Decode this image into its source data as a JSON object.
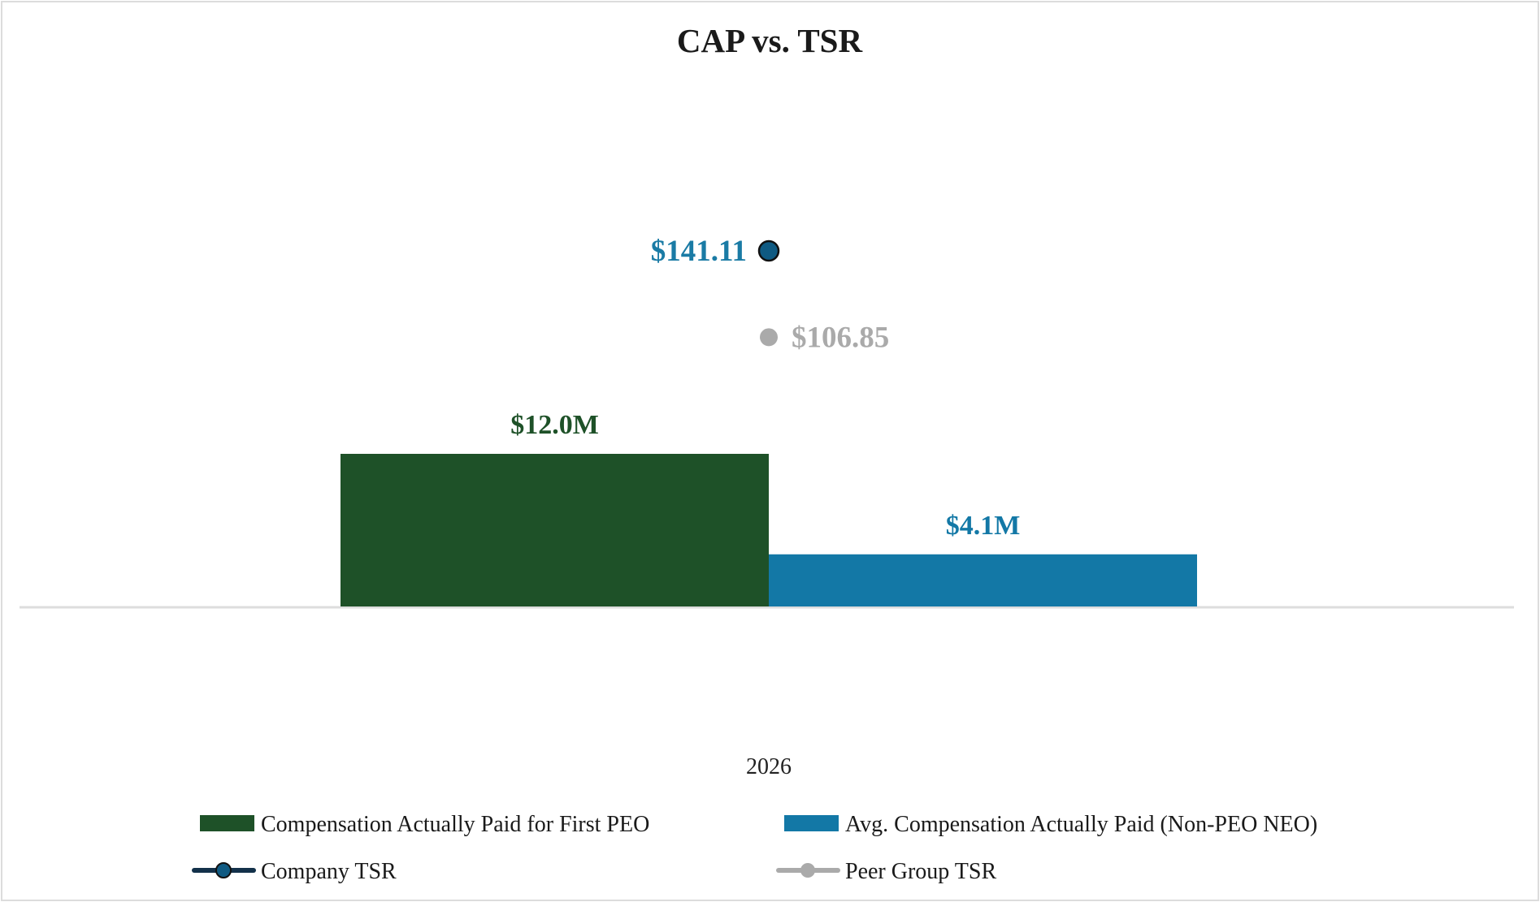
{
  "chart_data": {
    "type": "bar",
    "title": "CAP vs. TSR",
    "categories": [
      "2026"
    ],
    "bar_series": [
      {
        "name": "Compensation Actually Paid for First PEO",
        "values": [
          12.0
        ],
        "labels": [
          "$12.0M"
        ],
        "color": "#1e5128"
      },
      {
        "name": "Avg. Compensation Actually Paid (Non-PEO NEO)",
        "values": [
          4.1
        ],
        "labels": [
          "$4.1M"
        ],
        "color": "#1378a6"
      }
    ],
    "line_series": [
      {
        "name": "Company TSR",
        "values": [
          141.11
        ],
        "labels": [
          "$141.11"
        ],
        "color": "#0f5a82",
        "label_color": "#1a7ba5"
      },
      {
        "name": "Peer Group TSR",
        "values": [
          106.85
        ],
        "labels": [
          "$106.85"
        ],
        "color": "#aaaaaa",
        "label_color": "#aaaaaa"
      }
    ],
    "legend_position": "bottom",
    "grid": false
  }
}
